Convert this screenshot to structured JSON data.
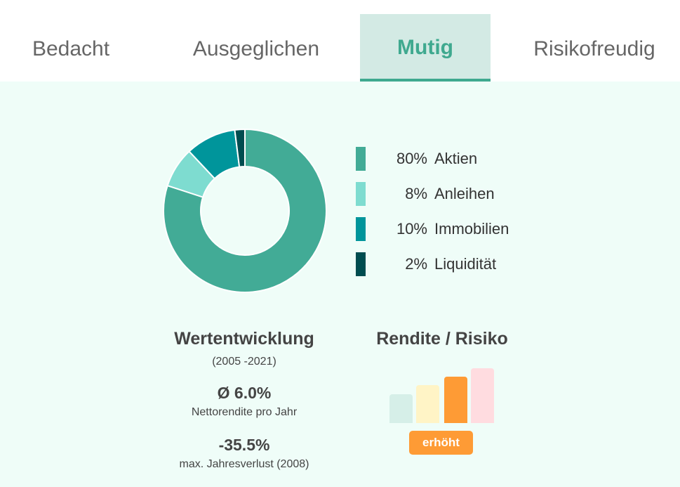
{
  "tabs": [
    {
      "label": "Bedacht"
    },
    {
      "label": "Ausgeglichen"
    },
    {
      "label": "Mutig",
      "active": true
    },
    {
      "label": "Risikofreudig"
    }
  ],
  "allocation": [
    {
      "percent": "80%",
      "label": "Aktien",
      "value": 80,
      "color": "#42ab96"
    },
    {
      "percent": "8%",
      "label": "Anleihen",
      "value": 8,
      "color": "#7edcd0"
    },
    {
      "percent": "10%",
      "label": "Immobilien",
      "value": 10,
      "color": "#00959b"
    },
    {
      "percent": "2%",
      "label": "Liquidität",
      "value": 2,
      "color": "#004d50"
    }
  ],
  "performance": {
    "title": "Wertentwicklung",
    "period": "(2005 -2021)",
    "avg": "Ø 6.0%",
    "avg_label": "Nettorendite pro Jahr",
    "loss": "-35.5%",
    "loss_label": "max. Jahresverlust (2008)"
  },
  "risk": {
    "title": "Rendite / Risiko",
    "level": "erhöht",
    "level_index": 3,
    "bar_colors": [
      "#d6efe8",
      "#fff4c6",
      "#fe9b35",
      "#ffdce0"
    ]
  }
}
